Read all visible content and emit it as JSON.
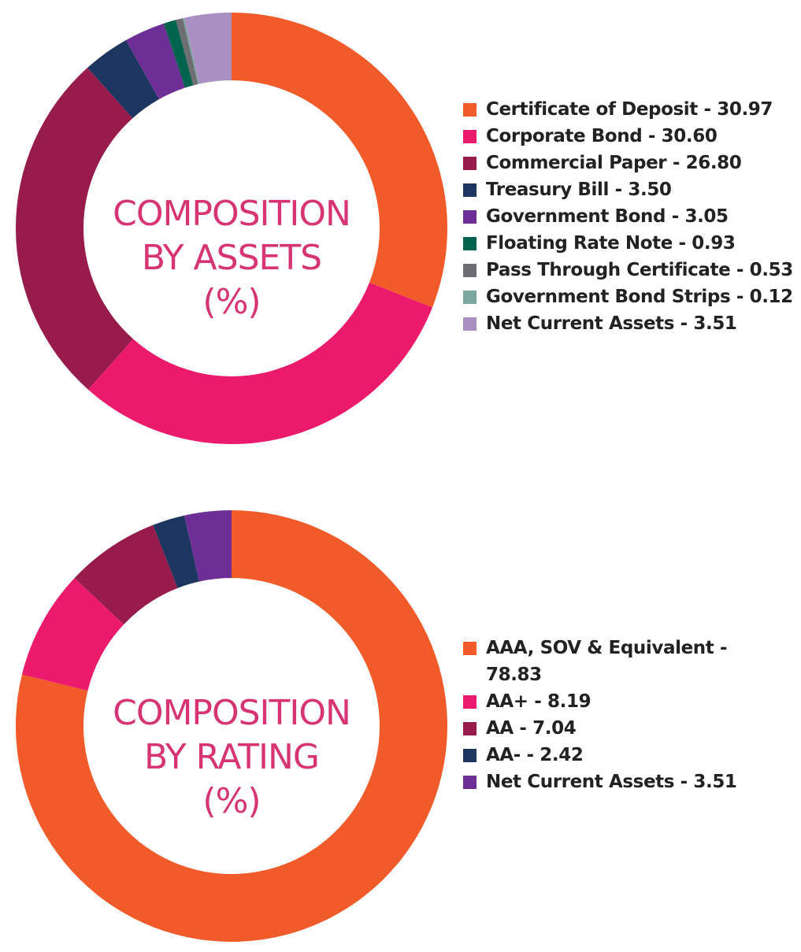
{
  "chart_data": [
    {
      "type": "pie",
      "donut": true,
      "title": "COMPOSITION BY ASSETS (%)",
      "title_lines": [
        "COMPOSITION",
        "BY ASSETS",
        "(%)"
      ],
      "legend_position": "right",
      "categories": [
        "Certificate of Deposit",
        "Corporate Bond",
        "Commercial Paper",
        "Treasury Bill",
        "Government Bond",
        "Floating Rate Note",
        "Pass Through Certificate",
        "Government Bond Strips",
        "Net Current Assets"
      ],
      "values": [
        30.97,
        30.6,
        26.8,
        3.5,
        3.05,
        0.93,
        0.53,
        0.12,
        3.51
      ],
      "legend_labels": [
        "Certificate of Deposit - 30.97",
        "Corporate Bond - 30.60",
        "Commercial Paper - 26.80",
        "Treasury Bill - 3.50",
        "Government Bond - 3.05",
        "Floating Rate Note - 0.93",
        "Pass Through Certificate - 0.53",
        "Government Bond Strips - 0.12",
        "Net Current Assets - 3.51"
      ],
      "colors": [
        "#f15a29",
        "#ec1a6d",
        "#971b4b",
        "#1c3660",
        "#6d2f96",
        "#00634e",
        "#6d6e71",
        "#7ba7a0",
        "#a98fc2"
      ]
    },
    {
      "type": "pie",
      "donut": true,
      "title": "COMPOSITION BY RATING (%)",
      "title_lines": [
        "COMPOSITION",
        "BY RATING",
        "(%)"
      ],
      "legend_position": "right",
      "categories": [
        "AAA, SOV & Equivalent",
        "AA+",
        "AA",
        "AA-",
        "Net Current Assets"
      ],
      "values": [
        78.83,
        8.19,
        7.04,
        2.42,
        3.51
      ],
      "legend_labels": [
        "AAA, SOV & Equivalent - 78.83",
        "AA+ - 8.19",
        "AA - 7.04",
        "AA- - 2.42",
        "Net Current Assets - 3.51"
      ],
      "colors": [
        "#f15a29",
        "#ec1a6d",
        "#971b4b",
        "#1c3660",
        "#6d2f96"
      ]
    }
  ]
}
